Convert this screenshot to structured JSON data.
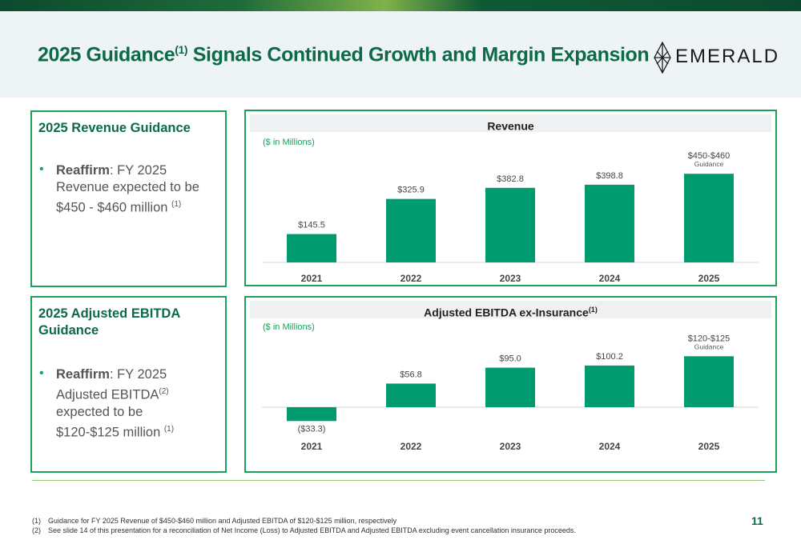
{
  "slide": {
    "title": "2025 Guidance",
    "title_sup": "(1)",
    "title_rest": " Signals Continued Growth and Margin Expansion",
    "logo_text": "EMERALD",
    "page_number": "11"
  },
  "revenue_box": {
    "title": "2025 Revenue Guidance",
    "bullet_bold": "Reaffirm",
    "bullet_text": ": FY 2025 Revenue expected to be $450 - $460 million ",
    "bullet_sup": "(1)"
  },
  "ebitda_box": {
    "title": "2025 Adjusted EBITDA Guidance",
    "bullet_bold": "Reaffirm",
    "bullet_text": ": FY 2025 Adjusted EBITDA",
    "bullet_sup1": "(2)",
    "bullet_text2": " expected to be $120-$125 million ",
    "bullet_sup2": "(1)"
  },
  "chart_data": [
    {
      "type": "bar",
      "title": "Revenue",
      "title_sup": "",
      "unit_note": "($ in Millions)",
      "categories": [
        "2021",
        "2022",
        "2023",
        "2024",
        "2025"
      ],
      "values": [
        145.5,
        325.9,
        382.8,
        398.8,
        455
      ],
      "labels": [
        "$145.5",
        "$325.9",
        "$382.8",
        "$398.8",
        "$450-$460"
      ],
      "sublabels": [
        "",
        "",
        "",
        "",
        "Guidance"
      ],
      "bar_color": "#009b6e",
      "ylim": [
        0,
        460
      ]
    },
    {
      "type": "bar",
      "title": "Adjusted EBITDA ex-Insurance",
      "title_sup": "(1)",
      "unit_note": "($ in Millions)",
      "categories": [
        "2021",
        "2022",
        "2023",
        "2024",
        "2025"
      ],
      "values": [
        -33.3,
        56.8,
        95.0,
        100.2,
        122.5
      ],
      "labels": [
        "($33.3)",
        "$56.8",
        "$95.0",
        "$100.2",
        "$120-$125"
      ],
      "sublabels": [
        "",
        "",
        "",
        "",
        "Guidance"
      ],
      "bar_color": "#009b6e",
      "ylim": [
        -40,
        125
      ]
    }
  ],
  "footnotes": [
    {
      "num": "(1)",
      "text": "Guidance for FY 2025 Revenue of $450-$460 million and Adjusted EBITDA of $120-$125 million, respectively"
    },
    {
      "num": "(2)",
      "text": "See slide 14 of this presentation for a reconciliation of Net Income (Loss) to Adjusted EBITDA and Adjusted EBITDA excluding event cancellation insurance proceeds."
    }
  ]
}
